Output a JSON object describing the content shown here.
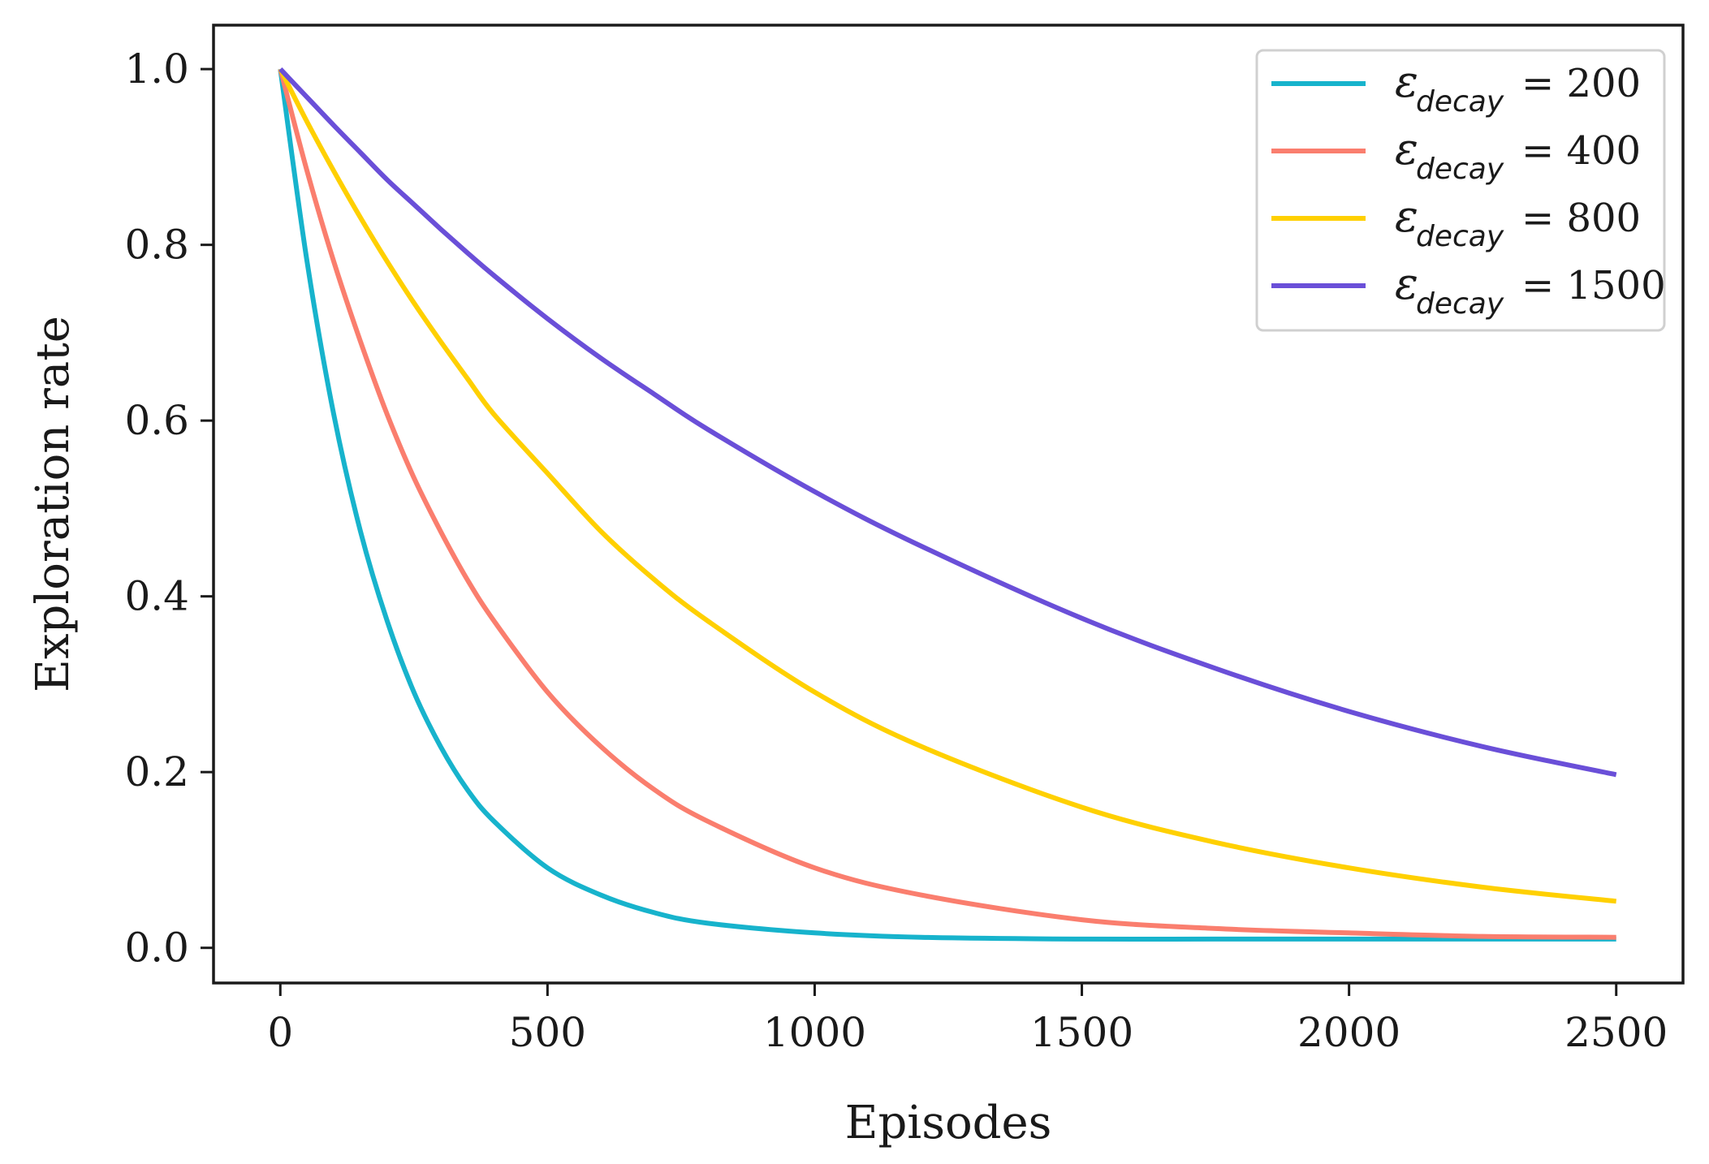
{
  "chart_data": {
    "type": "line",
    "title": "",
    "xlabel": "Episodes",
    "ylabel": "Exploration rate",
    "xlim": [
      -125,
      2625
    ],
    "ylim": [
      -0.04,
      1.05
    ],
    "xticks": [
      0,
      500,
      1000,
      1500,
      2000,
      2500
    ],
    "xtick_labels": [
      "0",
      "500",
      "1000",
      "1500",
      "2000",
      "2500"
    ],
    "yticks": [
      0.0,
      0.2,
      0.4,
      0.6,
      0.8,
      1.0
    ],
    "ytick_labels": [
      "0.0",
      "0.2",
      "0.4",
      "0.6",
      "0.8",
      "1.0"
    ],
    "grid": false,
    "legend_position": "top-right",
    "legend_symbol": "ε",
    "legend_subscript": "decay",
    "x": [
      0,
      50,
      100,
      150,
      200,
      250,
      300,
      350,
      400,
      500,
      600,
      700,
      800,
      1000,
      1200,
      1500,
      1750,
      2000,
      2250,
      2500
    ],
    "series": [
      {
        "name": "ε_decay = 200",
        "legend_value": "= 200",
        "color": "#17b3cc",
        "values": [
          1.0,
          0.781,
          0.607,
          0.474,
          0.372,
          0.291,
          0.229,
          0.18,
          0.144,
          0.091,
          0.06,
          0.04,
          0.028,
          0.017,
          0.012,
          0.01,
          0.01,
          0.01,
          0.01,
          0.01
        ]
      },
      {
        "name": "ε_decay = 400",
        "legend_value": "= 400",
        "color": "#fa7e6e",
        "values": [
          1.0,
          0.884,
          0.781,
          0.69,
          0.607,
          0.535,
          0.474,
          0.419,
          0.372,
          0.291,
          0.229,
          0.18,
          0.144,
          0.091,
          0.06,
          0.032,
          0.022,
          0.017,
          0.013,
          0.012
        ]
      },
      {
        "name": "ε_decay = 800",
        "legend_value": "= 800",
        "color": "#ffd000",
        "values": [
          1.0,
          0.94,
          0.884,
          0.831,
          0.781,
          0.734,
          0.69,
          0.648,
          0.607,
          0.54,
          0.474,
          0.419,
          0.372,
          0.291,
          0.229,
          0.16,
          0.12,
          0.091,
          0.069,
          0.053
        ]
      },
      {
        "name": "ε_decay = 1500",
        "legend_value": "= 1500",
        "color": "#6a4fd8",
        "values": [
          1.0,
          0.968,
          0.936,
          0.905,
          0.874,
          0.846,
          0.818,
          0.791,
          0.765,
          0.716,
          0.671,
          0.63,
          0.59,
          0.519,
          0.457,
          0.375,
          0.318,
          0.269,
          0.229,
          0.197
        ]
      }
    ]
  }
}
